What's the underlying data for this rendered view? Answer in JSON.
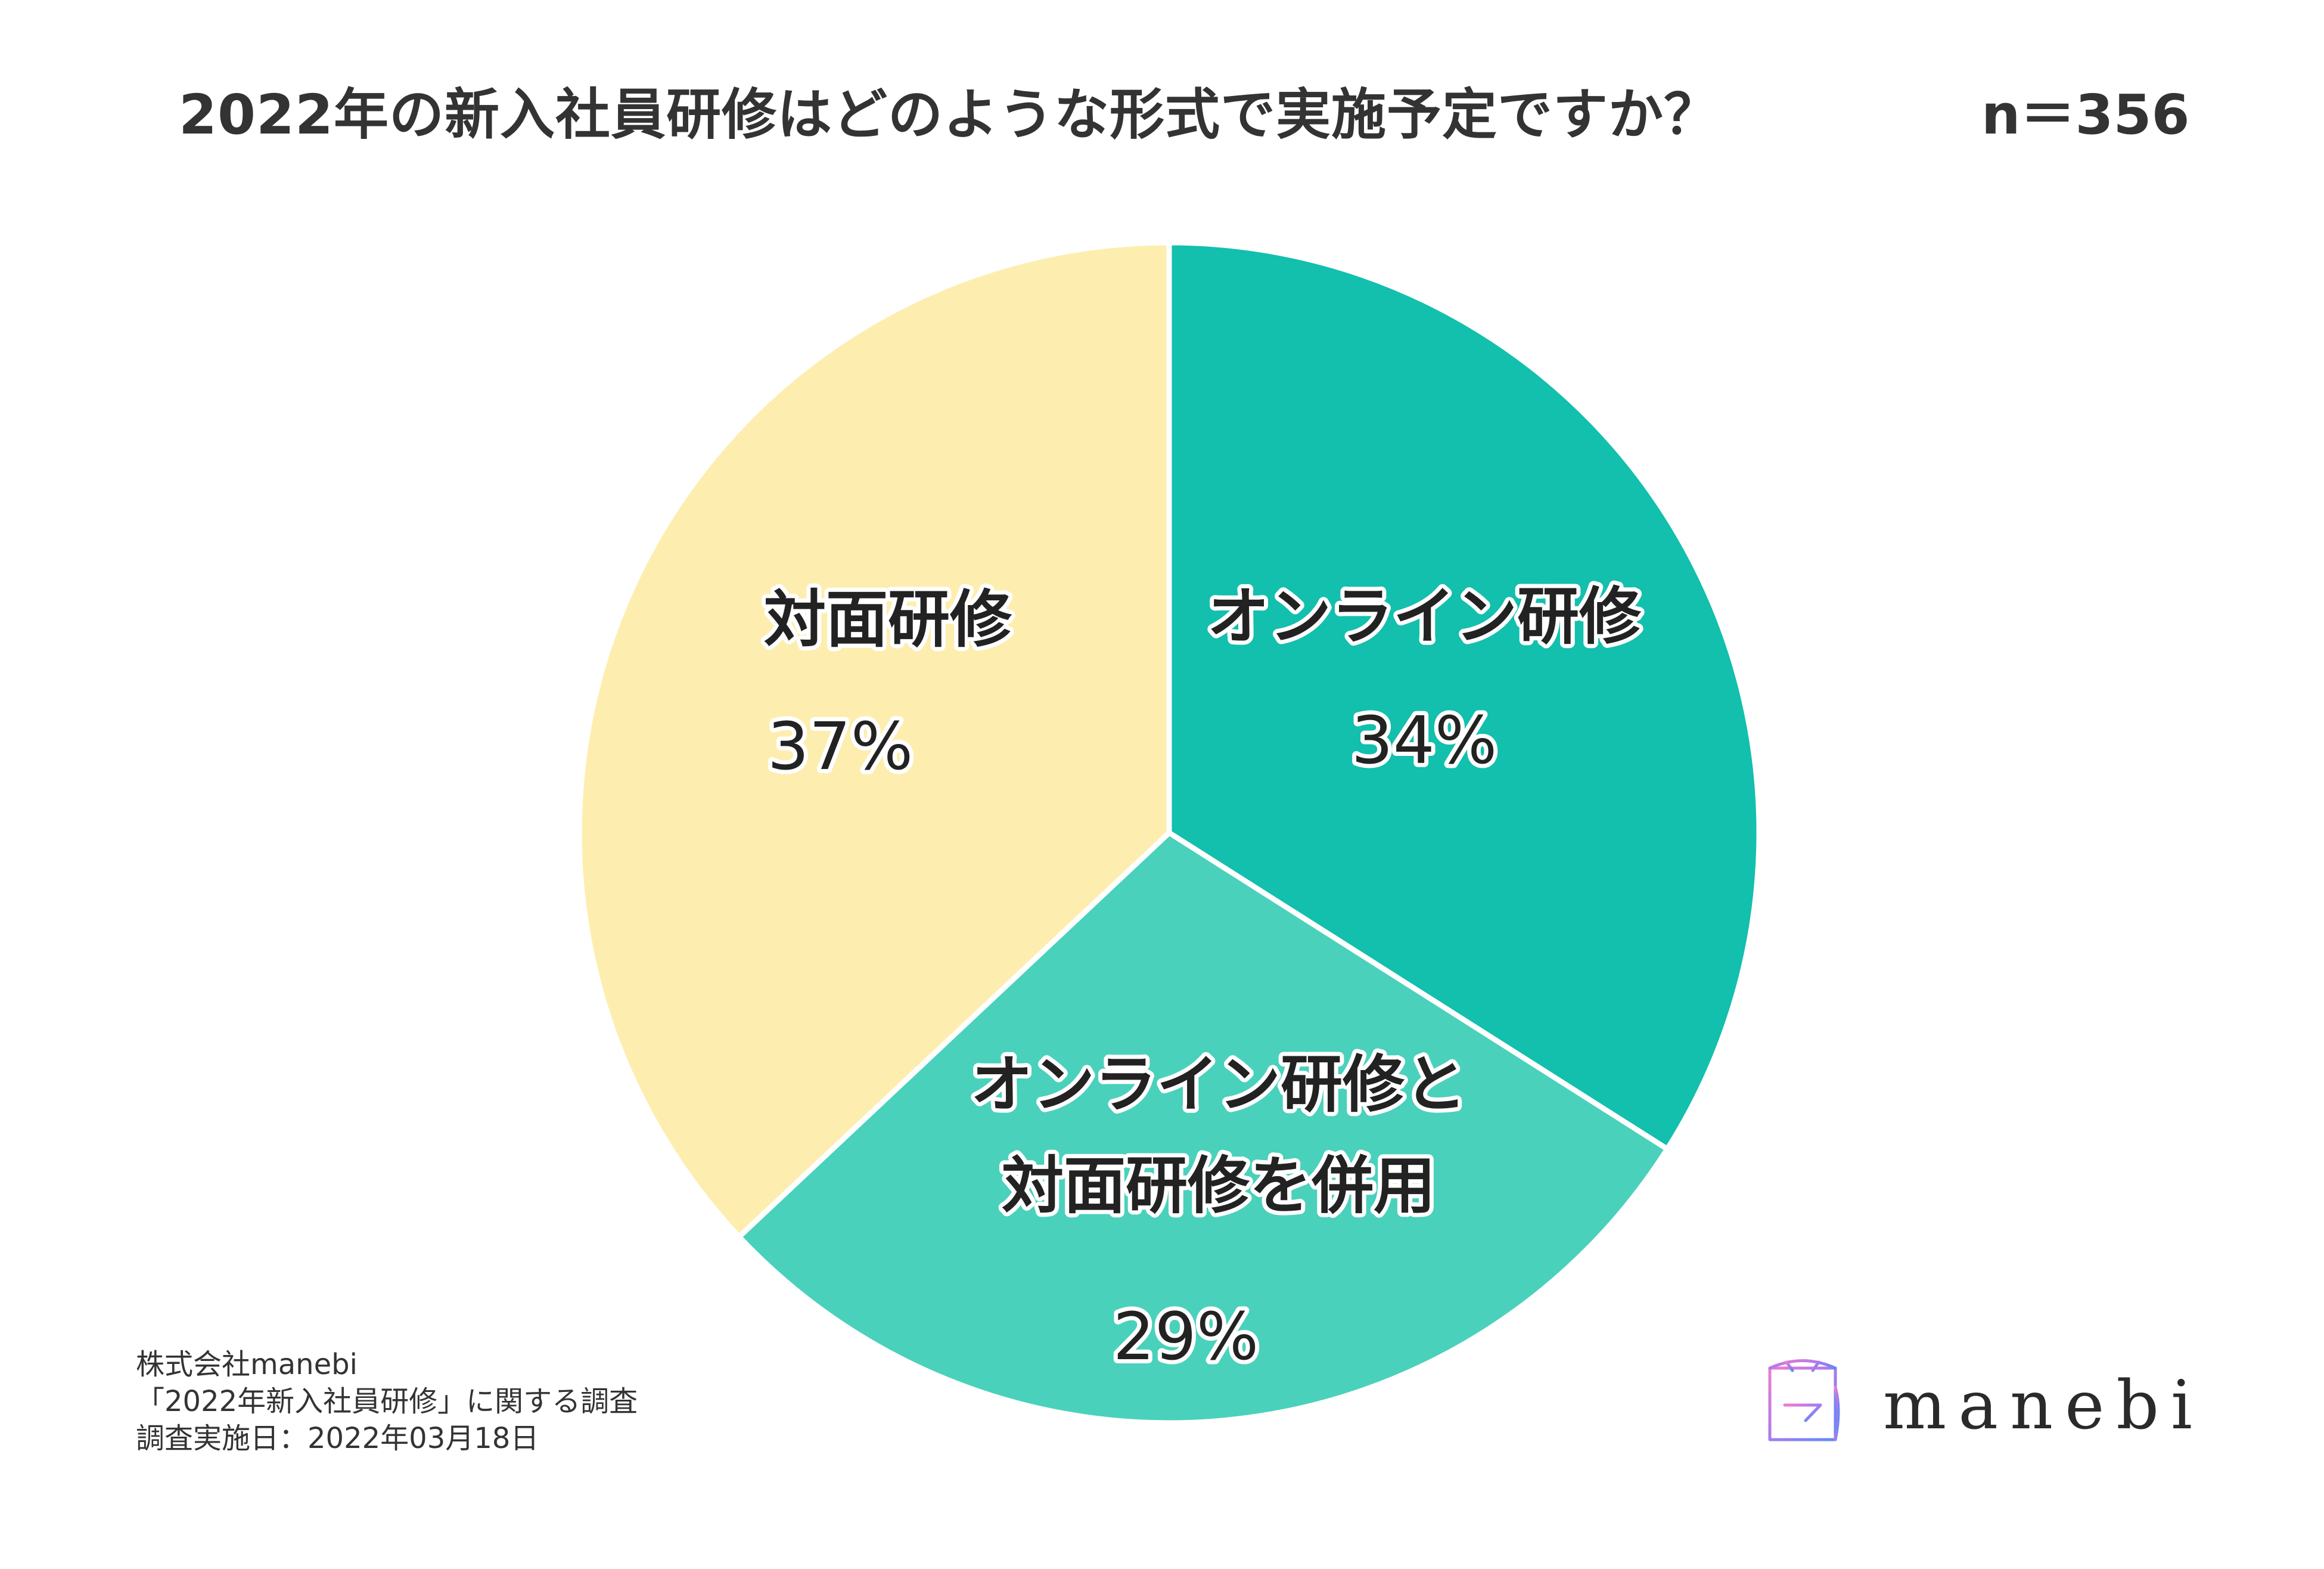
{
  "title": "2022年の新入社員研修はどのような形式で実施予定ですか？",
  "sample_size": "n＝356",
  "colors": {
    "online": "#13bfad",
    "hybrid": "#4ad1bb",
    "in_person": "#fdeeb0",
    "separator": "#ffffff",
    "text": "#222222"
  },
  "chart_data": {
    "type": "pie",
    "slices": [
      {
        "label": "オンライン研修",
        "value": 34,
        "value_label": "34%",
        "color": "#13bfad"
      },
      {
        "label": "オンライン研修と\n対面研修を併用",
        "value": 29,
        "value_label": "29%",
        "color": "#4ad1bb"
      },
      {
        "label": "対面研修",
        "value": 37,
        "value_label": "37%",
        "color": "#fdeeb0"
      }
    ],
    "start_angle_deg": 0,
    "direction": "clockwise",
    "legend": "none"
  },
  "source": {
    "company": "株式会社manebi",
    "survey": "「2022年新入社員研修」に関する調査",
    "date": "調査実施日：2022年03月18日"
  },
  "logo": {
    "text": "manebi",
    "icon": "manebi-logo-icon"
  }
}
